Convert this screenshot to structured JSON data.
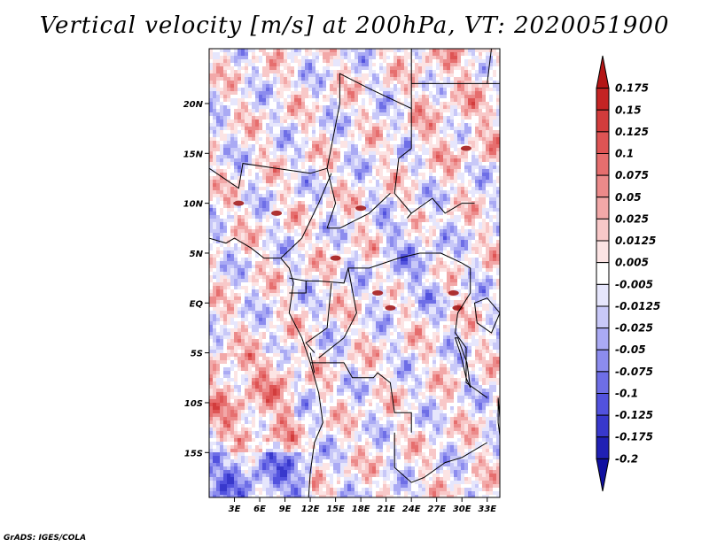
{
  "title": "Vertical velocity [m/s] at 200hPa, VT: 2020051900",
  "credit": "GrADS: IGES/COLA",
  "chart_data": {
    "type": "heatmap",
    "title": "Vertical velocity [m/s] at 200hPa, VT: 2020051900",
    "variable": "Vertical velocity",
    "units": "m/s",
    "level": "200hPa",
    "valid_time": "2020051900",
    "xlim": [
      0,
      34.5
    ],
    "ylim": [
      -19.5,
      25.5
    ],
    "x_ticks": [
      {
        "value": 3,
        "label": "3E"
      },
      {
        "value": 6,
        "label": "6E"
      },
      {
        "value": 9,
        "label": "9E"
      },
      {
        "value": 12,
        "label": "12E"
      },
      {
        "value": 15,
        "label": "15E"
      },
      {
        "value": 18,
        "label": "18E"
      },
      {
        "value": 21,
        "label": "21E"
      },
      {
        "value": 24,
        "label": "24E"
      },
      {
        "value": 27,
        "label": "27E"
      },
      {
        "value": 30,
        "label": "30E"
      },
      {
        "value": 33,
        "label": "33E"
      }
    ],
    "y_ticks": [
      {
        "value": 20,
        "label": "20N"
      },
      {
        "value": 15,
        "label": "15N"
      },
      {
        "value": 10,
        "label": "10N"
      },
      {
        "value": 5,
        "label": "5N"
      },
      {
        "value": 0,
        "label": "EQ"
      },
      {
        "value": -5,
        "label": "5S"
      },
      {
        "value": -10,
        "label": "10S"
      },
      {
        "value": -15,
        "label": "15S"
      }
    ],
    "colorbar": {
      "labels": [
        "0.175",
        "0.15",
        "0.125",
        "0.1",
        "0.075",
        "0.05",
        "0.025",
        "0.0125",
        "0.005",
        "-0.005",
        "-0.0125",
        "-0.025",
        "-0.05",
        "-0.075",
        "-0.1",
        "-0.125",
        "-0.175",
        "-0.2"
      ],
      "colors": [
        "#b41616",
        "#c42424",
        "#d23c3c",
        "#de5454",
        "#e66e6e",
        "#ec8a8a",
        "#f2a8a8",
        "#f8c8c8",
        "#fce4e4",
        "#ffffff",
        "#e6e6fc",
        "#c8c8f8",
        "#aaaaf4",
        "#8c8cee",
        "#6e6ee6",
        "#5252de",
        "#3838cc",
        "#2020b4",
        "#1010a0"
      ]
    }
  }
}
